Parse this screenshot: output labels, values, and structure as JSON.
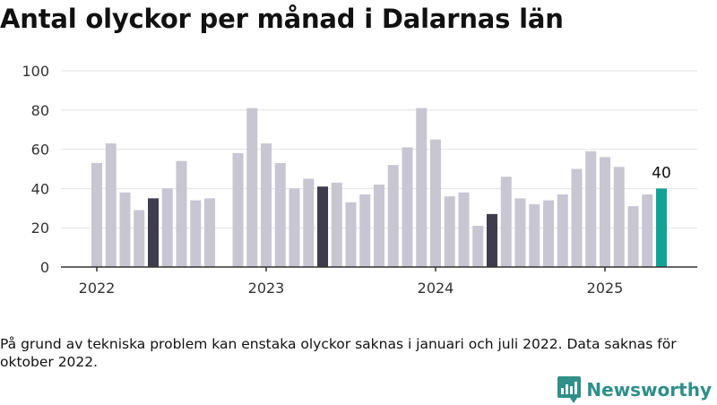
{
  "title": "Antal olyckor per månad i Dalarnas län",
  "footnote": "På grund av tekniska problem kan enstaka olyckor saknas i januari och juli 2022. Data saknas för oktober 2022.",
  "brand": {
    "name": "Newsworthy",
    "color": "#2f8f89"
  },
  "chart_data": {
    "type": "bar",
    "title": "Antal olyckor per månad i Dalarnas län",
    "xlabel": "",
    "ylabel": "",
    "ylim": [
      0,
      100
    ],
    "yticks": [
      0,
      20,
      40,
      60,
      80,
      100
    ],
    "xtick_labels": [
      "2022",
      "2023",
      "2024",
      "2025"
    ],
    "xtick_at": [
      "2022-01",
      "2023-01",
      "2024-01",
      "2025-01"
    ],
    "grid": true,
    "legend": "none",
    "colors": {
      "default": "#c8c6d2",
      "highlight_may": "#3d3d4d",
      "latest": "#12a295"
    },
    "data_label": {
      "month": "2025-05",
      "text": "40"
    },
    "months": [
      "2022-01",
      "2022-02",
      "2022-03",
      "2022-04",
      "2022-05",
      "2022-06",
      "2022-07",
      "2022-08",
      "2022-09",
      "2022-10",
      "2022-11",
      "2022-12",
      "2023-01",
      "2023-02",
      "2023-03",
      "2023-04",
      "2023-05",
      "2023-06",
      "2023-07",
      "2023-08",
      "2023-09",
      "2023-10",
      "2023-11",
      "2023-12",
      "2024-01",
      "2024-02",
      "2024-03",
      "2024-04",
      "2024-05",
      "2024-06",
      "2024-07",
      "2024-08",
      "2024-09",
      "2024-10",
      "2024-11",
      "2024-12",
      "2025-01",
      "2025-02",
      "2025-03",
      "2025-04",
      "2025-05"
    ],
    "values": [
      53,
      63,
      38,
      29,
      35,
      40,
      54,
      34,
      35,
      null,
      58,
      81,
      63,
      53,
      40,
      45,
      41,
      43,
      33,
      37,
      42,
      52,
      61,
      81,
      65,
      36,
      38,
      21,
      27,
      46,
      35,
      32,
      34,
      37,
      50,
      59,
      56,
      51,
      31,
      37,
      40
    ],
    "highlight": [
      "default",
      "default",
      "default",
      "default",
      "highlight_may",
      "default",
      "default",
      "default",
      "default",
      "default",
      "default",
      "default",
      "default",
      "default",
      "default",
      "default",
      "highlight_may",
      "default",
      "default",
      "default",
      "default",
      "default",
      "default",
      "default",
      "default",
      "default",
      "default",
      "default",
      "highlight_may",
      "default",
      "default",
      "default",
      "default",
      "default",
      "default",
      "default",
      "default",
      "default",
      "default",
      "default",
      "latest"
    ]
  }
}
